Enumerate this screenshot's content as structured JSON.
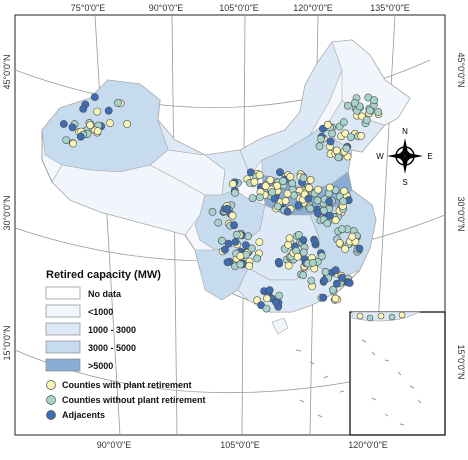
{
  "map": {
    "lon_ticks_top": [
      "75°0'0\"E",
      "90°0'0\"E",
      "105°0'0\"E",
      "120°0'0\"E",
      "135°0'0\"E"
    ],
    "lon_ticks_bottom": [
      "90°0'0\"E",
      "105°0'0\"E",
      "120°0'0\"E"
    ],
    "lat_ticks_left": [
      "45°0'0\"N",
      "30°0'0\"N",
      "15°0'0\"N"
    ],
    "lat_ticks_right": [
      "45°0'0\"N",
      "30°0'0\"N",
      "15°0'0\"N"
    ],
    "compass": {
      "n": "N",
      "s": "S",
      "e": "E",
      "w": "W"
    }
  },
  "legend": {
    "title": "Retired capacity (MW)",
    "classes": [
      {
        "label": "No data",
        "color": "#ffffff"
      },
      {
        "label": "<1000",
        "color": "#f1f6fc"
      },
      {
        "label": "1000 - 3000",
        "color": "#dde9f6"
      },
      {
        "label": "3000 - 5000",
        "color": "#c7dbef"
      },
      {
        "label": ">5000",
        "color": "#8aadd6"
      }
    ],
    "points": [
      {
        "label": "Counties with plant retirement",
        "color": "#fbf5b4"
      },
      {
        "label": "Counties without plant retirement",
        "color": "#a8d3cd"
      },
      {
        "label": "Adjacents",
        "color": "#3f6db3"
      }
    ]
  },
  "colors": {
    "graticule": "#9a9a9a",
    "province_border": "#a9a9a9",
    "point_outline": "#4d4d4d"
  }
}
